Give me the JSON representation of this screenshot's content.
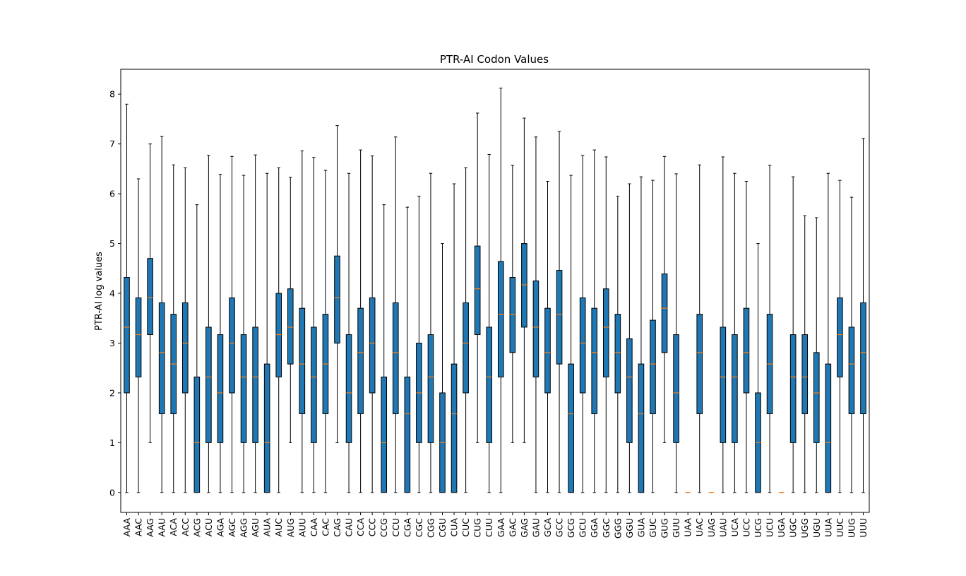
{
  "chart_data": {
    "type": "box",
    "title": "PTR-AI Codon Values",
    "xlabel": "",
    "ylabel": "PTR-AI log values",
    "ylim": [
      -0.4,
      8.5
    ],
    "yticks": [
      0,
      1,
      2,
      3,
      4,
      5,
      6,
      7,
      8
    ],
    "grid": false,
    "colors": {
      "box_fill": "#1f77b4",
      "median": "#ff7f0e",
      "line": "#000000"
    },
    "boxes": [
      {
        "label": "AAA",
        "whislo": 0,
        "q1": 2.0,
        "med": 3.32,
        "q3": 4.32,
        "whishi": 7.8
      },
      {
        "label": "AAC",
        "whislo": 0,
        "q1": 2.32,
        "med": 3.17,
        "q3": 3.91,
        "whishi": 6.3
      },
      {
        "label": "AAG",
        "whislo": 1.0,
        "q1": 3.17,
        "med": 3.91,
        "q3": 4.7,
        "whishi": 7.0
      },
      {
        "label": "AAU",
        "whislo": 0,
        "q1": 1.58,
        "med": 2.81,
        "q3": 3.81,
        "whishi": 7.15
      },
      {
        "label": "ACA",
        "whislo": 0,
        "q1": 1.58,
        "med": 2.58,
        "q3": 3.58,
        "whishi": 6.58
      },
      {
        "label": "ACC",
        "whislo": 0,
        "q1": 2.0,
        "med": 3.0,
        "q3": 3.81,
        "whishi": 6.52
      },
      {
        "label": "ACG",
        "whislo": 0,
        "q1": 0,
        "med": 1.0,
        "q3": 2.32,
        "whishi": 5.78
      },
      {
        "label": "ACU",
        "whislo": 0,
        "q1": 1.0,
        "med": 2.32,
        "q3": 3.32,
        "whishi": 6.77
      },
      {
        "label": "AGA",
        "whislo": 0,
        "q1": 1.0,
        "med": 2.0,
        "q3": 3.17,
        "whishi": 6.39
      },
      {
        "label": "AGC",
        "whislo": 0,
        "q1": 2.0,
        "med": 3.0,
        "q3": 3.91,
        "whishi": 6.75
      },
      {
        "label": "AGG",
        "whislo": 0,
        "q1": 1.0,
        "med": 2.32,
        "q3": 3.17,
        "whishi": 6.37
      },
      {
        "label": "AGU",
        "whislo": 0,
        "q1": 1.0,
        "med": 2.32,
        "q3": 3.32,
        "whishi": 6.78
      },
      {
        "label": "AUA",
        "whislo": 0,
        "q1": 0,
        "med": 1.0,
        "q3": 2.58,
        "whishi": 6.41
      },
      {
        "label": "AUC",
        "whislo": 0,
        "q1": 2.32,
        "med": 3.17,
        "q3": 4.0,
        "whishi": 6.52
      },
      {
        "label": "AUG",
        "whislo": 1.0,
        "q1": 2.58,
        "med": 3.32,
        "q3": 4.09,
        "whishi": 6.33
      },
      {
        "label": "AUU",
        "whislo": 0,
        "q1": 1.58,
        "med": 2.58,
        "q3": 3.7,
        "whishi": 6.86
      },
      {
        "label": "CAA",
        "whislo": 0,
        "q1": 1.0,
        "med": 2.32,
        "q3": 3.32,
        "whishi": 6.73
      },
      {
        "label": "CAC",
        "whislo": 0,
        "q1": 1.58,
        "med": 2.58,
        "q3": 3.58,
        "whishi": 6.47
      },
      {
        "label": "CAG",
        "whislo": 1.0,
        "q1": 3.0,
        "med": 3.91,
        "q3": 4.75,
        "whishi": 7.37
      },
      {
        "label": "CAU",
        "whislo": 0,
        "q1": 1.0,
        "med": 2.0,
        "q3": 3.17,
        "whishi": 6.41
      },
      {
        "label": "CCA",
        "whislo": 0,
        "q1": 1.58,
        "med": 2.81,
        "q3": 3.7,
        "whishi": 6.88
      },
      {
        "label": "CCC",
        "whislo": 0,
        "q1": 2.0,
        "med": 3.0,
        "q3": 3.91,
        "whishi": 6.76
      },
      {
        "label": "CCG",
        "whislo": 0,
        "q1": 0,
        "med": 1.0,
        "q3": 2.32,
        "whishi": 5.78
      },
      {
        "label": "CCU",
        "whislo": 0,
        "q1": 1.58,
        "med": 2.81,
        "q3": 3.81,
        "whishi": 7.14
      },
      {
        "label": "CGA",
        "whislo": 0,
        "q1": 0,
        "med": 1.58,
        "q3": 2.32,
        "whishi": 5.73
      },
      {
        "label": "CGC",
        "whislo": 0,
        "q1": 1.0,
        "med": 2.0,
        "q3": 3.0,
        "whishi": 5.95
      },
      {
        "label": "CGG",
        "whislo": 0,
        "q1": 1.0,
        "med": 2.32,
        "q3": 3.17,
        "whishi": 6.41
      },
      {
        "label": "CGU",
        "whislo": 0,
        "q1": 0,
        "med": 1.0,
        "q3": 2.0,
        "whishi": 5.0
      },
      {
        "label": "CUA",
        "whislo": 0,
        "q1": 0,
        "med": 1.58,
        "q3": 2.58,
        "whishi": 6.2
      },
      {
        "label": "CUC",
        "whislo": 0,
        "q1": 2.0,
        "med": 3.0,
        "q3": 3.81,
        "whishi": 6.52
      },
      {
        "label": "CUG",
        "whislo": 1.0,
        "q1": 3.17,
        "med": 4.09,
        "q3": 4.95,
        "whishi": 7.62
      },
      {
        "label": "CUU",
        "whislo": 0,
        "q1": 1.0,
        "med": 2.32,
        "q3": 3.32,
        "whishi": 6.79
      },
      {
        "label": "GAA",
        "whislo": 0,
        "q1": 2.32,
        "med": 3.58,
        "q3": 4.64,
        "whishi": 8.12
      },
      {
        "label": "GAC",
        "whislo": 1.0,
        "q1": 2.81,
        "med": 3.58,
        "q3": 4.32,
        "whishi": 6.57
      },
      {
        "label": "GAG",
        "whislo": 1.0,
        "q1": 3.32,
        "med": 4.17,
        "q3": 5.0,
        "whishi": 7.52
      },
      {
        "label": "GAU",
        "whislo": 0,
        "q1": 2.32,
        "med": 3.32,
        "q3": 4.25,
        "whishi": 7.14
      },
      {
        "label": "GCA",
        "whislo": 0,
        "q1": 2.0,
        "med": 2.81,
        "q3": 3.7,
        "whishi": 6.25
      },
      {
        "label": "GCC",
        "whislo": 0,
        "q1": 2.58,
        "med": 3.58,
        "q3": 4.46,
        "whishi": 7.25
      },
      {
        "label": "GCG",
        "whislo": 0,
        "q1": 0,
        "med": 1.58,
        "q3": 2.58,
        "whishi": 6.37
      },
      {
        "label": "GCU",
        "whislo": 0,
        "q1": 2.0,
        "med": 3.0,
        "q3": 3.91,
        "whishi": 6.77
      },
      {
        "label": "GGA",
        "whislo": 0,
        "q1": 1.58,
        "med": 2.81,
        "q3": 3.7,
        "whishi": 6.88
      },
      {
        "label": "GGC",
        "whislo": 0,
        "q1": 2.32,
        "med": 3.32,
        "q3": 4.09,
        "whishi": 6.74
      },
      {
        "label": "GGG",
        "whislo": 0,
        "q1": 2.0,
        "med": 2.81,
        "q3": 3.58,
        "whishi": 5.95
      },
      {
        "label": "GGU",
        "whislo": 0,
        "q1": 1.0,
        "med": 2.32,
        "q3": 3.09,
        "whishi": 6.2
      },
      {
        "label": "GUA",
        "whislo": 0,
        "q1": 0,
        "med": 1.58,
        "q3": 2.58,
        "whishi": 6.34
      },
      {
        "label": "GUC",
        "whislo": 0,
        "q1": 1.58,
        "med": 2.58,
        "q3": 3.46,
        "whishi": 6.27
      },
      {
        "label": "GUG",
        "whislo": 1.0,
        "q1": 2.81,
        "med": 3.7,
        "q3": 4.39,
        "whishi": 6.75
      },
      {
        "label": "GUU",
        "whislo": 0,
        "q1": 1.0,
        "med": 2.0,
        "q3": 3.17,
        "whishi": 6.4
      },
      {
        "label": "UAA",
        "whislo": 0,
        "q1": 0,
        "med": 0,
        "q3": 0,
        "whishi": 0
      },
      {
        "label": "UAC",
        "whislo": 0,
        "q1": 1.58,
        "med": 2.81,
        "q3": 3.58,
        "whishi": 6.58
      },
      {
        "label": "UAG",
        "whislo": 0,
        "q1": 0,
        "med": 0,
        "q3": 0,
        "whishi": 0
      },
      {
        "label": "UAU",
        "whislo": 0,
        "q1": 1.0,
        "med": 2.32,
        "q3": 3.32,
        "whishi": 6.74
      },
      {
        "label": "UCA",
        "whislo": 0,
        "q1": 1.0,
        "med": 2.32,
        "q3": 3.17,
        "whishi": 6.41
      },
      {
        "label": "UCC",
        "whislo": 0,
        "q1": 2.0,
        "med": 2.81,
        "q3": 3.7,
        "whishi": 6.25
      },
      {
        "label": "UCG",
        "whislo": 0,
        "q1": 0,
        "med": 1.0,
        "q3": 2.0,
        "whishi": 5.0
      },
      {
        "label": "UCU",
        "whislo": 0,
        "q1": 1.58,
        "med": 2.58,
        "q3": 3.58,
        "whishi": 6.57
      },
      {
        "label": "UGA",
        "whislo": 0,
        "q1": 0,
        "med": 0,
        "q3": 0,
        "whishi": 0
      },
      {
        "label": "UGC",
        "whislo": 0,
        "q1": 1.0,
        "med": 2.32,
        "q3": 3.17,
        "whishi": 6.34
      },
      {
        "label": "UGG",
        "whislo": 0,
        "q1": 1.58,
        "med": 2.32,
        "q3": 3.17,
        "whishi": 5.56
      },
      {
        "label": "UGU",
        "whislo": 0,
        "q1": 1.0,
        "med": 2.0,
        "q3": 2.81,
        "whishi": 5.52
      },
      {
        "label": "UUA",
        "whislo": 0,
        "q1": 0,
        "med": 1.0,
        "q3": 2.58,
        "whishi": 6.41
      },
      {
        "label": "UUC",
        "whislo": 0,
        "q1": 2.32,
        "med": 3.17,
        "q3": 3.91,
        "whishi": 6.27
      },
      {
        "label": "UUG",
        "whislo": 0,
        "q1": 1.58,
        "med": 2.58,
        "q3": 3.32,
        "whishi": 5.93
      },
      {
        "label": "UUU",
        "whislo": 0,
        "q1": 1.58,
        "med": 2.81,
        "q3": 3.81,
        "whishi": 7.11
      }
    ]
  }
}
